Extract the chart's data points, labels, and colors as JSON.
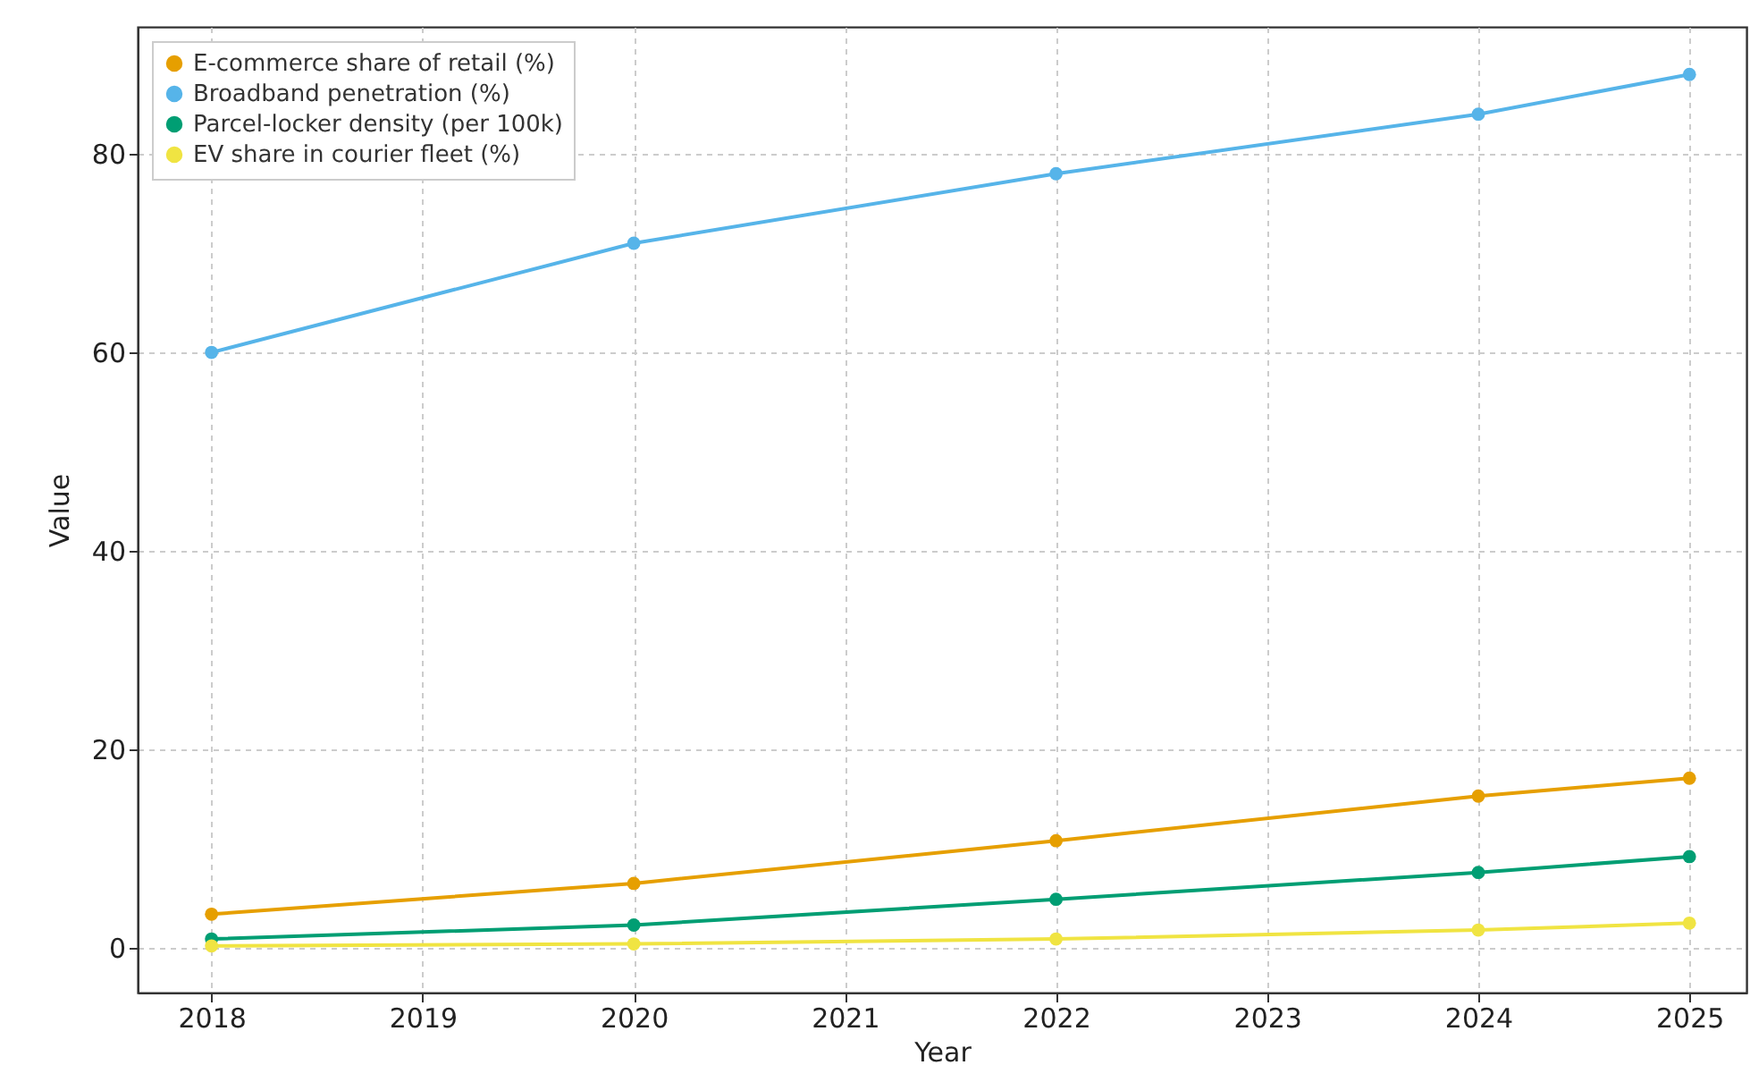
{
  "chart_data": {
    "type": "line",
    "xlabel": "Year",
    "ylabel": "Value",
    "x": [
      2018,
      2020,
      2022,
      2024,
      2025
    ],
    "series": [
      {
        "name": "E-commerce share of retail (%)",
        "color": "#e69f00",
        "values": [
          3.4,
          6.5,
          10.8,
          15.3,
          17.1
        ]
      },
      {
        "name": "Broadband penetration (%)",
        "color": "#56b4e9",
        "values": [
          60,
          71,
          78,
          84,
          88
        ]
      },
      {
        "name": "Parcel-locker density (per 100k)",
        "color": "#009e73",
        "values": [
          0.9,
          2.3,
          4.9,
          7.6,
          9.2
        ]
      },
      {
        "name": "EV share in courier fleet (%)",
        "color": "#f0e442",
        "values": [
          0.2,
          0.4,
          0.9,
          1.8,
          2.5
        ]
      }
    ],
    "xlim": [
      2017.65,
      2025.27
    ],
    "xticks": [
      2018,
      2019,
      2020,
      2021,
      2022,
      2023,
      2024,
      2025
    ],
    "ylim": [
      -4.5,
      92.8
    ],
    "yticks": [
      0,
      20,
      40,
      60,
      80
    ],
    "grid": true,
    "legend": "top left",
    "marker": "circle",
    "line_style": "solid"
  }
}
